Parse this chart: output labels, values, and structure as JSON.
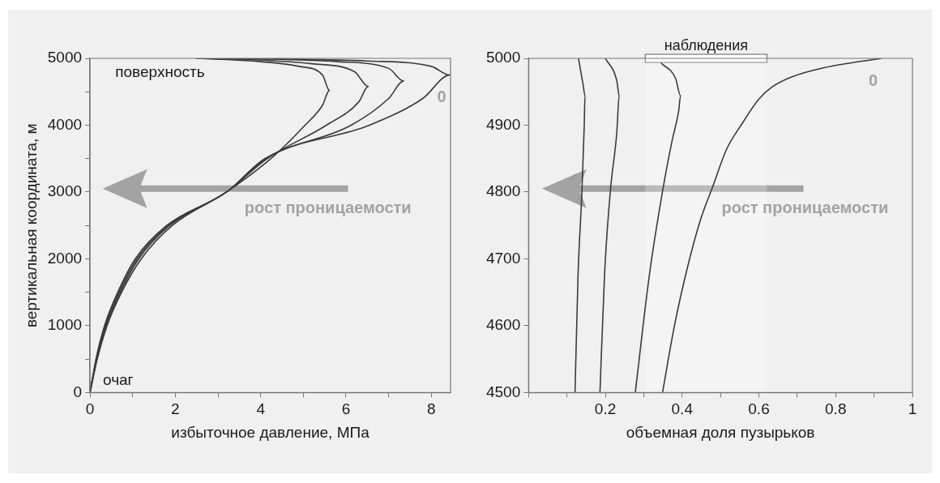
{
  "chart_data": [
    {
      "type": "line",
      "xlabel": "избыточное давление, МПа",
      "ylabel": "вертикальная координата, м",
      "xlim": [
        0,
        8.45
      ],
      "ylim": [
        0,
        5000
      ],
      "xticks": [
        0,
        {
          "value": 1,
          "label": null
        },
        2,
        {
          "value": 3,
          "label": null
        },
        4,
        {
          "value": 5,
          "label": null
        },
        6,
        {
          "value": 7,
          "label": null
        },
        8
      ],
      "yticks": [
        0,
        {
          "value": 500,
          "label": null
        },
        1000,
        {
          "value": 1500,
          "label": null
        },
        2000,
        {
          "value": 2500,
          "label": null
        },
        3000,
        {
          "value": 3500,
          "label": null
        },
        4000,
        {
          "value": 4500,
          "label": null
        },
        5000
      ],
      "grid": false,
      "legend": false,
      "marker": "none",
      "line_style": "solid",
      "annotations": [
        "поверхность",
        "очаг",
        "рост проницаемости"
      ],
      "series": [
        {
          "color": "#3a3a3a",
          "x": [
            0,
            0.17,
            0.4,
            0.74,
            1.2,
            1.93,
            3.2,
            4.24,
            5.04,
            5.45,
            5.61,
            5.45,
            4.9,
            3.8,
            2.5
          ],
          "values": [
            0,
            500,
            1000,
            1500,
            2000,
            2500,
            3000,
            3500,
            4000,
            4300,
            4520,
            4750,
            4880,
            4960,
            5000
          ]
        },
        {
          "color": "#3a3a3a",
          "x": [
            0,
            0.16,
            0.38,
            0.71,
            1.14,
            1.87,
            3.2,
            4.15,
            5.54,
            6.3,
            6.52,
            6.2,
            5.2,
            3.8,
            2.5
          ],
          "values": [
            0,
            500,
            1000,
            1500,
            2000,
            2500,
            3000,
            3500,
            4000,
            4350,
            4580,
            4800,
            4920,
            4980,
            5000
          ]
        },
        {
          "color": "#3a3a3a",
          "x": [
            0,
            0.15,
            0.36,
            0.68,
            1.1,
            1.83,
            3.2,
            4.12,
            6.12,
            7.0,
            7.35,
            7.0,
            5.8,
            4.0,
            2.5
          ],
          "values": [
            0,
            500,
            1000,
            1500,
            2000,
            2500,
            3000,
            3500,
            4000,
            4400,
            4660,
            4850,
            4950,
            4990,
            5000
          ]
        },
        {
          "name": "0",
          "color": "#3a3a3a",
          "x": [
            0,
            0.14,
            0.34,
            0.65,
            1.06,
            1.8,
            3.2,
            4.1,
            6.55,
            7.8,
            8.43,
            8.0,
            6.5,
            4.5,
            2.5
          ],
          "values": [
            0,
            500,
            1000,
            1500,
            2000,
            2500,
            3000,
            3500,
            4000,
            4400,
            4750,
            4880,
            4960,
            4990,
            5000
          ]
        }
      ]
    },
    {
      "type": "line",
      "xlabel": "объемная доля пузырьков",
      "xlim": [
        0,
        1
      ],
      "ylim": [
        4500,
        5000
      ],
      "xticks": [
        {
          "value": 0,
          "label": null
        },
        {
          "value": 0.1,
          "label": null
        },
        0.2,
        {
          "value": 0.3,
          "label": null
        },
        0.4,
        {
          "value": 0.5,
          "label": null
        },
        0.6,
        {
          "value": 0.7,
          "label": null
        },
        0.8,
        {
          "value": 0.9,
          "label": null
        },
        1
      ],
      "yticks": [
        4500,
        4600,
        4700,
        4800,
        4900,
        5000
      ],
      "grid": false,
      "legend": false,
      "marker": "none",
      "line_style": "solid",
      "bands": [
        {
          "axis": "x",
          "from": 0.304,
          "to": 0.621,
          "label": "наблюдения"
        }
      ],
      "annotations": [
        "рост проницаемости"
      ],
      "series": [
        {
          "color": "#3a3a3a",
          "x": [
            0.13,
            0.142,
            0.147,
            0.145,
            0.139,
            0.129,
            0.121
          ],
          "values": [
            5000,
            4961,
            4944,
            4899,
            4801,
            4677,
            4500
          ]
        },
        {
          "color": "#3a3a3a",
          "x": [
            0.2,
            0.23,
            0.236,
            0.23,
            0.213,
            0.198,
            0.186
          ],
          "values": [
            5000,
            4966,
            4944,
            4890,
            4801,
            4677,
            4500
          ]
        },
        {
          "color": "#3a3a3a",
          "x": [
            0.345,
            0.383,
            0.396,
            0.391,
            0.374,
            0.349,
            0.315,
            0.278
          ],
          "values": [
            4993,
            4970,
            4944,
            4921,
            4877,
            4801,
            4677,
            4500
          ]
        },
        {
          "name": "0",
          "color": "#3a3a3a",
          "x": [
            0.919,
            0.77,
            0.685,
            0.634,
            0.6,
            0.557,
            0.515,
            0.481,
            0.447,
            0.413,
            0.379,
            0.349
          ],
          "values": [
            5000,
            4986,
            4972,
            4957,
            4939,
            4903,
            4863,
            4810,
            4757,
            4685,
            4597,
            4500
          ]
        }
      ]
    }
  ]
}
